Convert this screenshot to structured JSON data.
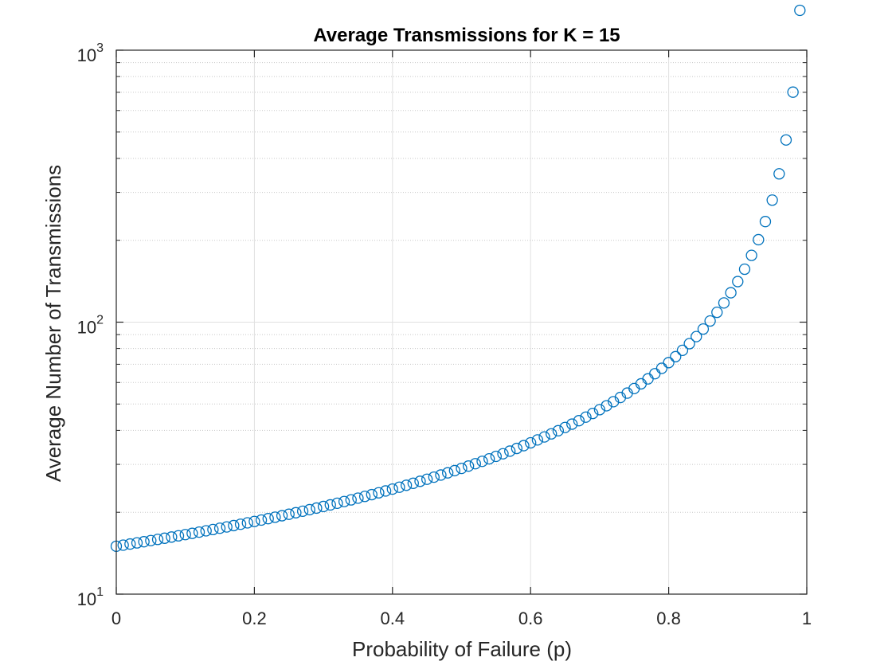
{
  "chart_data": {
    "type": "scatter",
    "title": "Average Transmissions for K = 15",
    "xlabel": "Probability of Failure (p)",
    "ylabel": "Average Number of Transmissions",
    "xlim": [
      0,
      1
    ],
    "ylim": [
      10,
      1000
    ],
    "yscale": "log",
    "grid": true,
    "legend": "none",
    "marker": "open-circle",
    "color": "#0072bd",
    "x_ticks": [
      "0",
      "0.2",
      "0.4",
      "0.6",
      "0.8",
      "1"
    ],
    "x_tick_values": [
      0,
      0.2,
      0.4,
      0.6,
      0.8,
      1
    ],
    "y_ticks": [
      {
        "base": "10",
        "exp": "1",
        "value": 10
      },
      {
        "base": "10",
        "exp": "2",
        "value": 100
      },
      {
        "base": "10",
        "exp": "3",
        "value": 1000
      }
    ],
    "formula": "y = 1 + 14 / (1 - p), p = 0.00 to 0.99 in steps of 0.01"
  }
}
